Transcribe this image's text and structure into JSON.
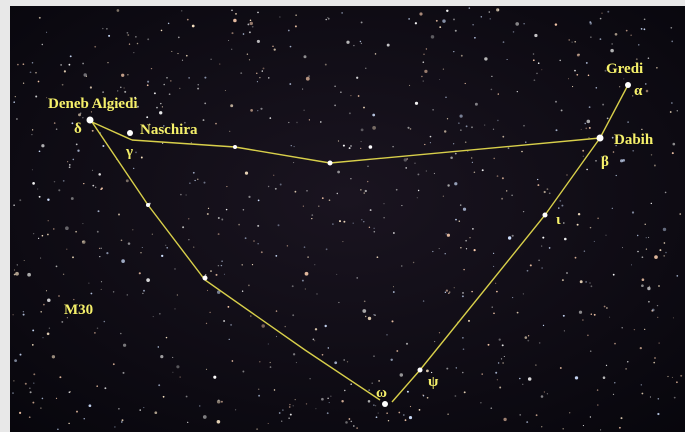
{
  "labels": {
    "deneb_algiedi": "Deneb Algiedi",
    "delta": "δ",
    "naschira": "Naschira",
    "gamma": "γ",
    "gredi": "Gredi",
    "alpha": "α",
    "dabih": "Dabih",
    "beta": "β",
    "iota": "ι",
    "omega": "ω",
    "psi": "ψ",
    "m30": "M30"
  }
}
